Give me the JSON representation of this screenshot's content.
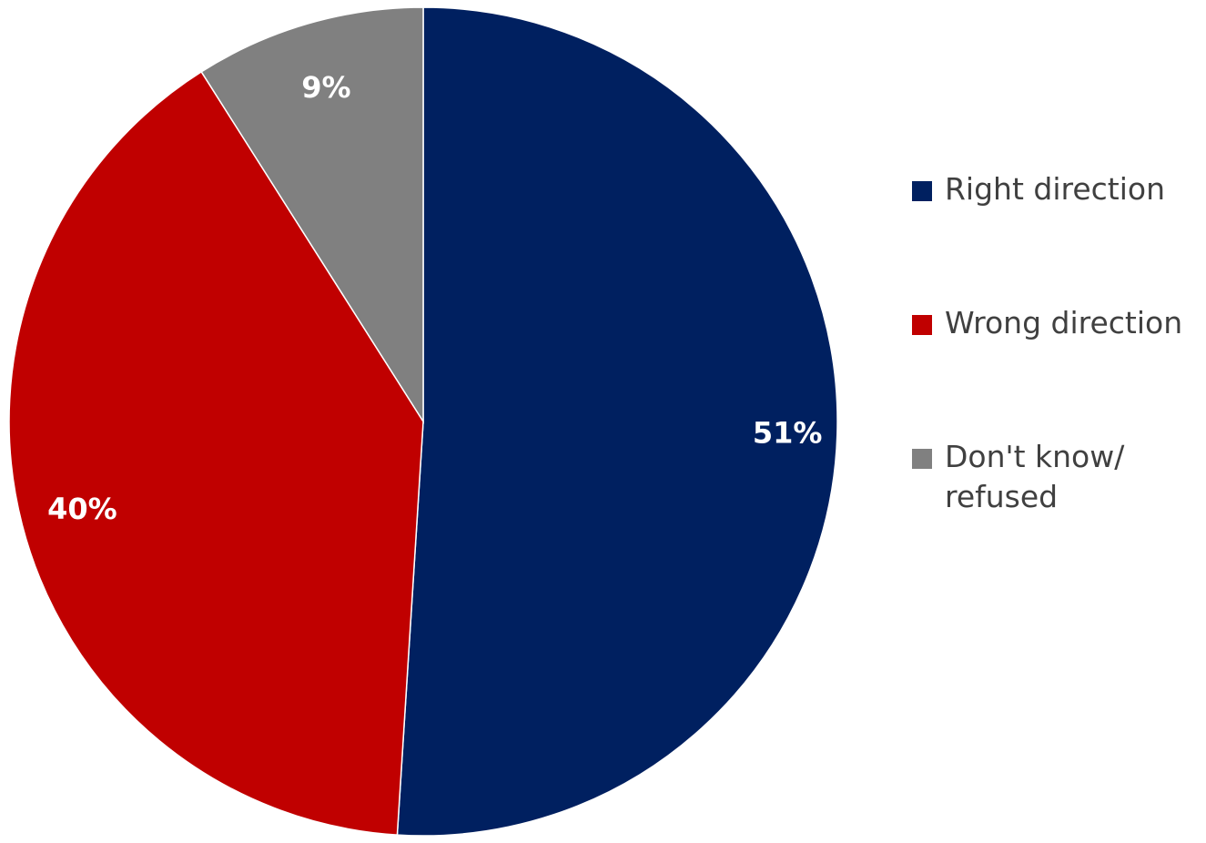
{
  "chart_data": {
    "type": "pie",
    "title": "",
    "slices": [
      {
        "label": "Right direction",
        "value": 51,
        "display": "51%",
        "color": "#002060"
      },
      {
        "label": "Wrong direction",
        "value": 40,
        "display": "40%",
        "color": "#C00000"
      },
      {
        "label": "Don't know/ refused",
        "value": 9,
        "display": "9%",
        "color": "#808080"
      }
    ],
    "legend": {
      "position": "right",
      "items": [
        {
          "line1": "Right direction",
          "line2": "",
          "color": "#002060"
        },
        {
          "line1": "Wrong direction",
          "line2": "",
          "color": "#C00000"
        },
        {
          "line1": "Don't know/",
          "line2": "refused",
          "color": "#808080"
        }
      ]
    },
    "start_angle": "12 o'clock",
    "direction": "clockwise"
  }
}
